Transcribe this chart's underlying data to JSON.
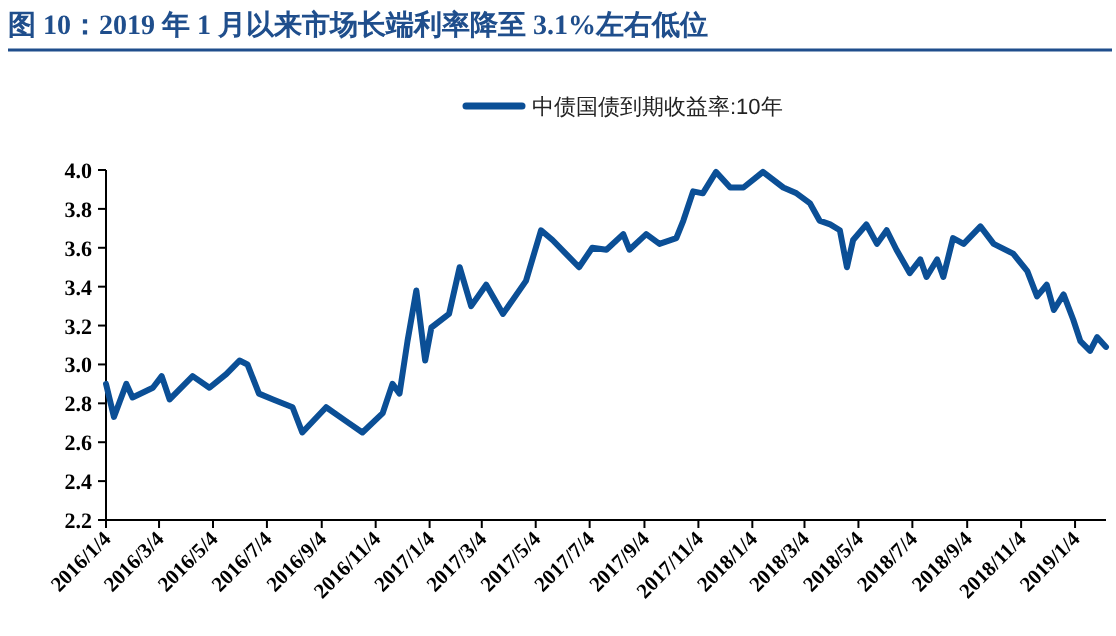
{
  "chart_data": {
    "type": "line",
    "title": "图 10：2019 年 1 月以来市场长端利率降至 3.1%左右低位",
    "x": [
      "2016-01-04",
      "2016-01-13",
      "2016-01-27",
      "2016-02-03",
      "2016-02-26",
      "2016-03-07",
      "2016-03-16",
      "2016-04-11",
      "2016-04-30",
      "2016-05-19",
      "2016-06-03",
      "2016-06-12",
      "2016-06-25",
      "2016-07-11",
      "2016-08-02",
      "2016-08-13",
      "2016-09-09",
      "2016-10-01",
      "2016-10-20",
      "2016-11-12",
      "2016-11-23",
      "2016-12-01",
      "2016-12-10",
      "2016-12-20",
      "2016-12-30",
      "2017-01-06",
      "2017-01-26",
      "2017-02-07",
      "2017-02-20",
      "2017-03-09",
      "2017-03-28",
      "2017-04-23",
      "2017-05-10",
      "2017-05-23",
      "2017-06-22",
      "2017-07-07",
      "2017-07-23",
      "2017-08-11",
      "2017-08-18",
      "2017-09-06",
      "2017-09-21",
      "2017-10-10",
      "2017-10-18",
      "2017-10-29",
      "2017-11-09",
      "2017-11-24",
      "2017-12-10",
      "2017-12-25",
      "2018-01-16",
      "2018-02-08",
      "2018-02-23",
      "2018-03-10",
      "2018-03-21",
      "2018-04-02",
      "2018-04-13",
      "2018-04-21",
      "2018-04-28",
      "2018-05-13",
      "2018-05-25",
      "2018-06-05",
      "2018-06-16",
      "2018-07-01",
      "2018-07-13",
      "2018-07-20",
      "2018-08-01",
      "2018-08-08",
      "2018-08-19",
      "2018-08-31",
      "2018-09-19",
      "2018-10-04",
      "2018-10-26",
      "2018-11-11",
      "2018-11-22",
      "2018-12-03",
      "2018-12-11",
      "2018-12-22",
      "2019-01-02",
      "2019-01-10",
      "2019-01-21",
      "2019-01-29",
      "2019-02-08"
    ],
    "series": [
      {
        "name": "中债国债到期收益率:10年",
        "color": "#0b4f96",
        "values": [
          2.9,
          2.73,
          2.9,
          2.83,
          2.88,
          2.94,
          2.82,
          2.94,
          2.88,
          2.95,
          3.02,
          3.0,
          2.85,
          2.82,
          2.78,
          2.65,
          2.78,
          2.71,
          2.65,
          2.75,
          2.9,
          2.85,
          3.12,
          3.38,
          3.02,
          3.19,
          3.26,
          3.5,
          3.3,
          3.41,
          3.26,
          3.43,
          3.69,
          3.64,
          3.5,
          3.6,
          3.59,
          3.67,
          3.59,
          3.67,
          3.62,
          3.65,
          3.74,
          3.89,
          3.88,
          3.99,
          3.91,
          3.91,
          3.99,
          3.91,
          3.88,
          3.83,
          3.74,
          3.72,
          3.69,
          3.5,
          3.64,
          3.72,
          3.62,
          3.69,
          3.59,
          3.47,
          3.54,
          3.45,
          3.54,
          3.45,
          3.65,
          3.62,
          3.71,
          3.62,
          3.57,
          3.48,
          3.35,
          3.41,
          3.28,
          3.36,
          3.23,
          3.12,
          3.07,
          3.14,
          3.09
        ]
      }
    ],
    "xlim": [
      "2016-01-04",
      "2019-02-08"
    ],
    "xticks": [
      {
        "value": "2016-01-04",
        "label": "2016/1/4"
      },
      {
        "value": "2016-03-04",
        "label": "2016/3/4"
      },
      {
        "value": "2016-05-04",
        "label": "2016/5/4"
      },
      {
        "value": "2016-07-04",
        "label": "2016/7/4"
      },
      {
        "value": "2016-09-04",
        "label": "2016/9/4"
      },
      {
        "value": "2016-11-04",
        "label": "2016/11/4"
      },
      {
        "value": "2017-01-04",
        "label": "2017/1/4"
      },
      {
        "value": "2017-03-04",
        "label": "2017/3/4"
      },
      {
        "value": "2017-05-04",
        "label": "2017/5/4"
      },
      {
        "value": "2017-07-04",
        "label": "2017/7/4"
      },
      {
        "value": "2017-09-04",
        "label": "2017/9/4"
      },
      {
        "value": "2017-11-04",
        "label": "2017/11/4"
      },
      {
        "value": "2018-01-04",
        "label": "2018/1/4"
      },
      {
        "value": "2018-03-04",
        "label": "2018/3/4"
      },
      {
        "value": "2018-05-04",
        "label": "2018/5/4"
      },
      {
        "value": "2018-07-04",
        "label": "2018/7/4"
      },
      {
        "value": "2018-09-04",
        "label": "2018/9/4"
      },
      {
        "value": "2018-11-04",
        "label": "2018/11/4"
      },
      {
        "value": "2019-01-04",
        "label": "2019/1/4"
      }
    ],
    "ylim": [
      2.2,
      4.0
    ],
    "yticks": [
      2.2,
      2.4,
      2.6,
      2.8,
      {
        "value": 3.0,
        "label": "3.0"
      },
      3.2,
      3.4,
      3.6,
      3.8,
      {
        "value": 4.0,
        "label": "4.0"
      }
    ],
    "grid": false,
    "legend": "top"
  }
}
